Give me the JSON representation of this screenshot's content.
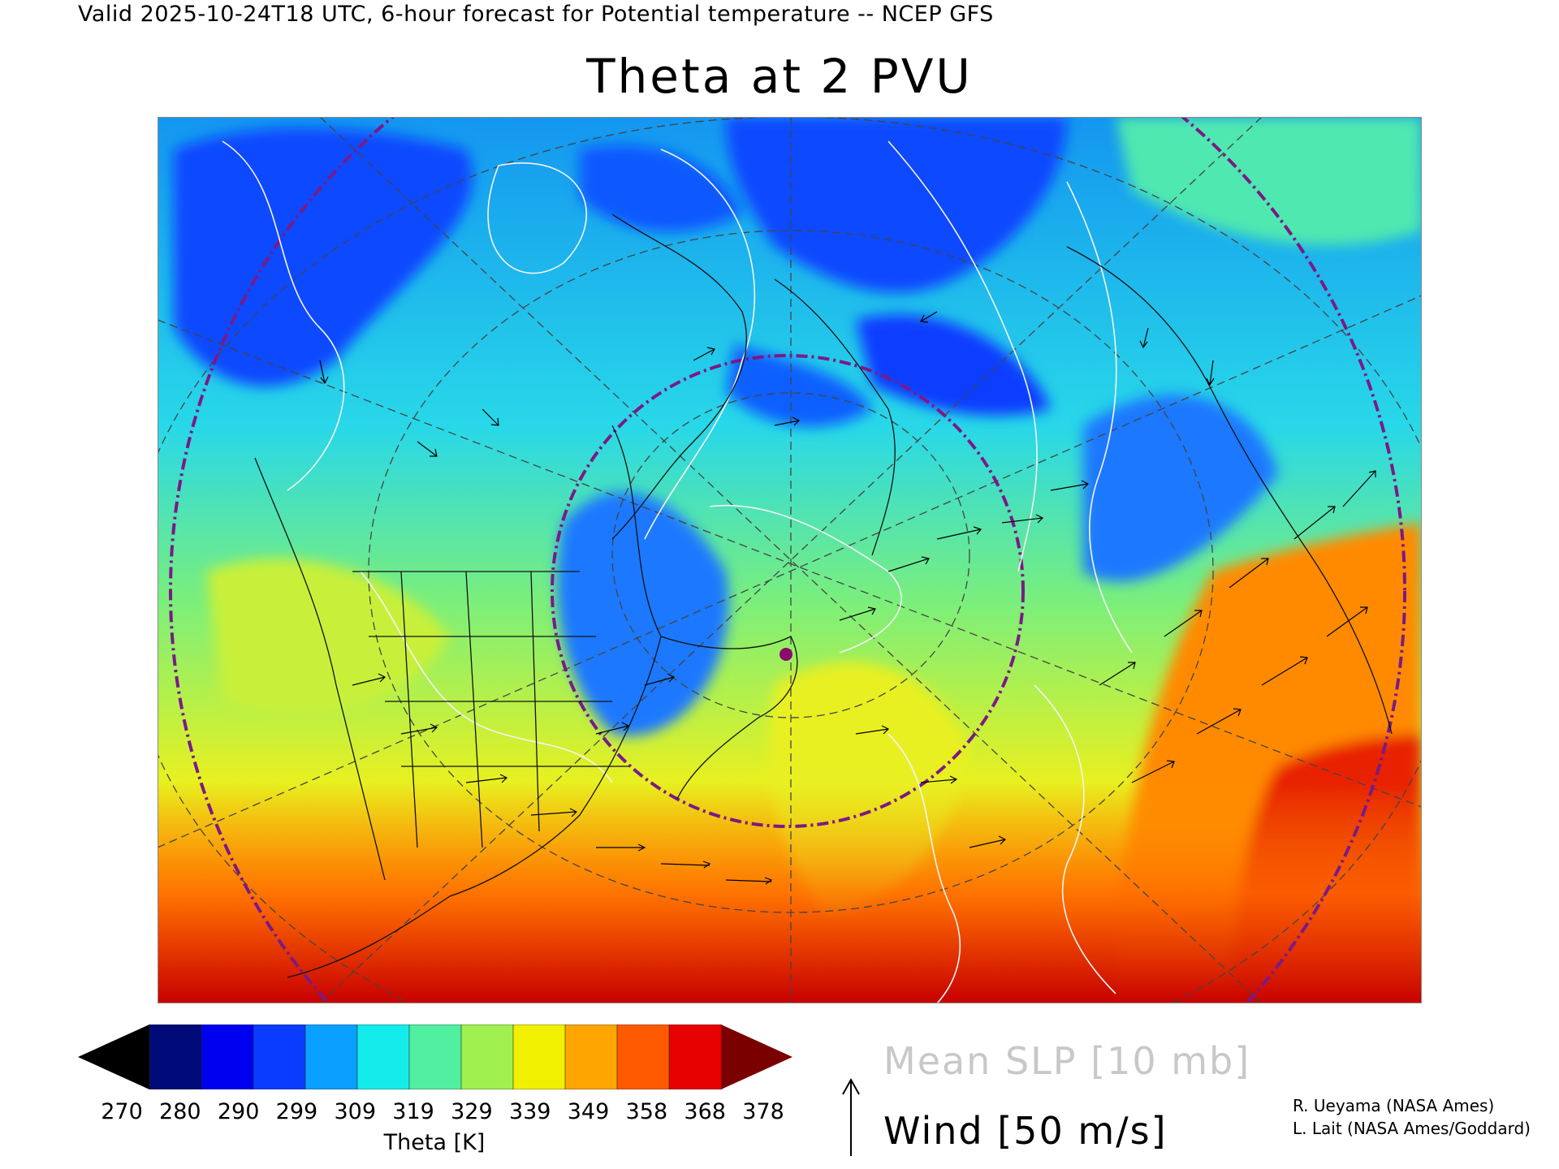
{
  "header": {
    "valid_line": "Valid 2025-10-24T18 UTC, 6-hour forecast for Potential temperature -- NCEP GFS",
    "title": "Theta at 2 PVU"
  },
  "map": {
    "projection": "polar stereographic, Northern Hemisphere",
    "field": "Potential temperature on the 2 PVU surface",
    "overlays": [
      "sea level pressure contours (white)",
      "wind vectors (black arrows)",
      "lat/lon grid (dashed)",
      "flight-region circles (purple dash-dot)"
    ],
    "marker_color": "#8b0a6b",
    "circle_color": "#7a1a86"
  },
  "legend": {
    "colorbar": {
      "ticks": [
        "270",
        "280",
        "290",
        "299",
        "309",
        "319",
        "329",
        "339",
        "349",
        "358",
        "368",
        "378"
      ],
      "low_cap_color": "#000000",
      "high_cap_color": "#7a0000",
      "colors": [
        "#000a78",
        "#0000f0",
        "#0a3cff",
        "#0aa0ff",
        "#14ebeb",
        "#50f0a0",
        "#a0f050",
        "#f0f000",
        "#ffa500",
        "#ff5a00",
        "#e60000"
      ],
      "label": "Theta [K]"
    },
    "slp_label": "Mean SLP [10 mb]",
    "wind_label": "Wind [50 m/s]"
  },
  "credits": {
    "line1": "R. Ueyama (NASA Ames)",
    "line2": "L. Lait (NASA Ames/Goddard)"
  }
}
